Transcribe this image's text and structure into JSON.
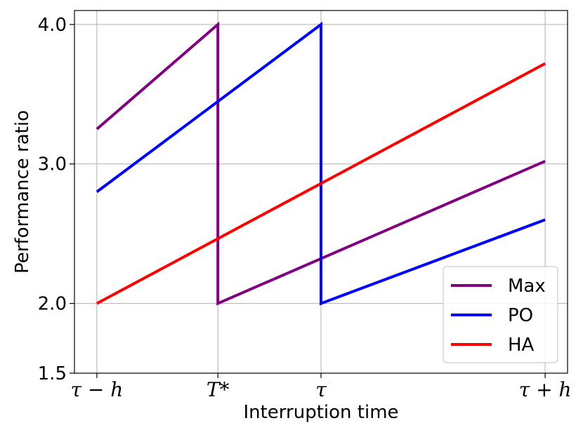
{
  "chart_data": {
    "type": "line",
    "xlabel": "Interruption time",
    "ylabel": "Performance ratio",
    "x_ticks": [
      {
        "value": 0,
        "label": "τ − h"
      },
      {
        "value": 0.27,
        "label": "T*"
      },
      {
        "value": 0.5,
        "label": "τ"
      },
      {
        "value": 1,
        "label": "τ + h"
      }
    ],
    "y_ticks": [
      {
        "value": 1.5,
        "label": "1.5"
      },
      {
        "value": 2.0,
        "label": "2.0"
      },
      {
        "value": 3.0,
        "label": "3.0"
      },
      {
        "value": 4.0,
        "label": "4.0"
      }
    ],
    "xlim": [
      -0.05,
      1.05
    ],
    "ylim": [
      1.5,
      4.1
    ],
    "grid": true,
    "legend_position": "bottom-right",
    "series": [
      {
        "name": "Max",
        "color": "#800080",
        "points": [
          [
            0,
            3.25
          ],
          [
            0.27,
            4.0
          ],
          [
            0.27,
            2.0
          ],
          [
            1,
            3.02
          ]
        ]
      },
      {
        "name": "PO",
        "color": "#0000ff",
        "points": [
          [
            0,
            2.8
          ],
          [
            0.5,
            4.0
          ],
          [
            0.5,
            2.0
          ],
          [
            1,
            2.6
          ]
        ]
      },
      {
        "name": "HA",
        "color": "#ff0000",
        "points": [
          [
            0,
            2.0
          ],
          [
            1,
            3.72
          ]
        ]
      }
    ]
  }
}
